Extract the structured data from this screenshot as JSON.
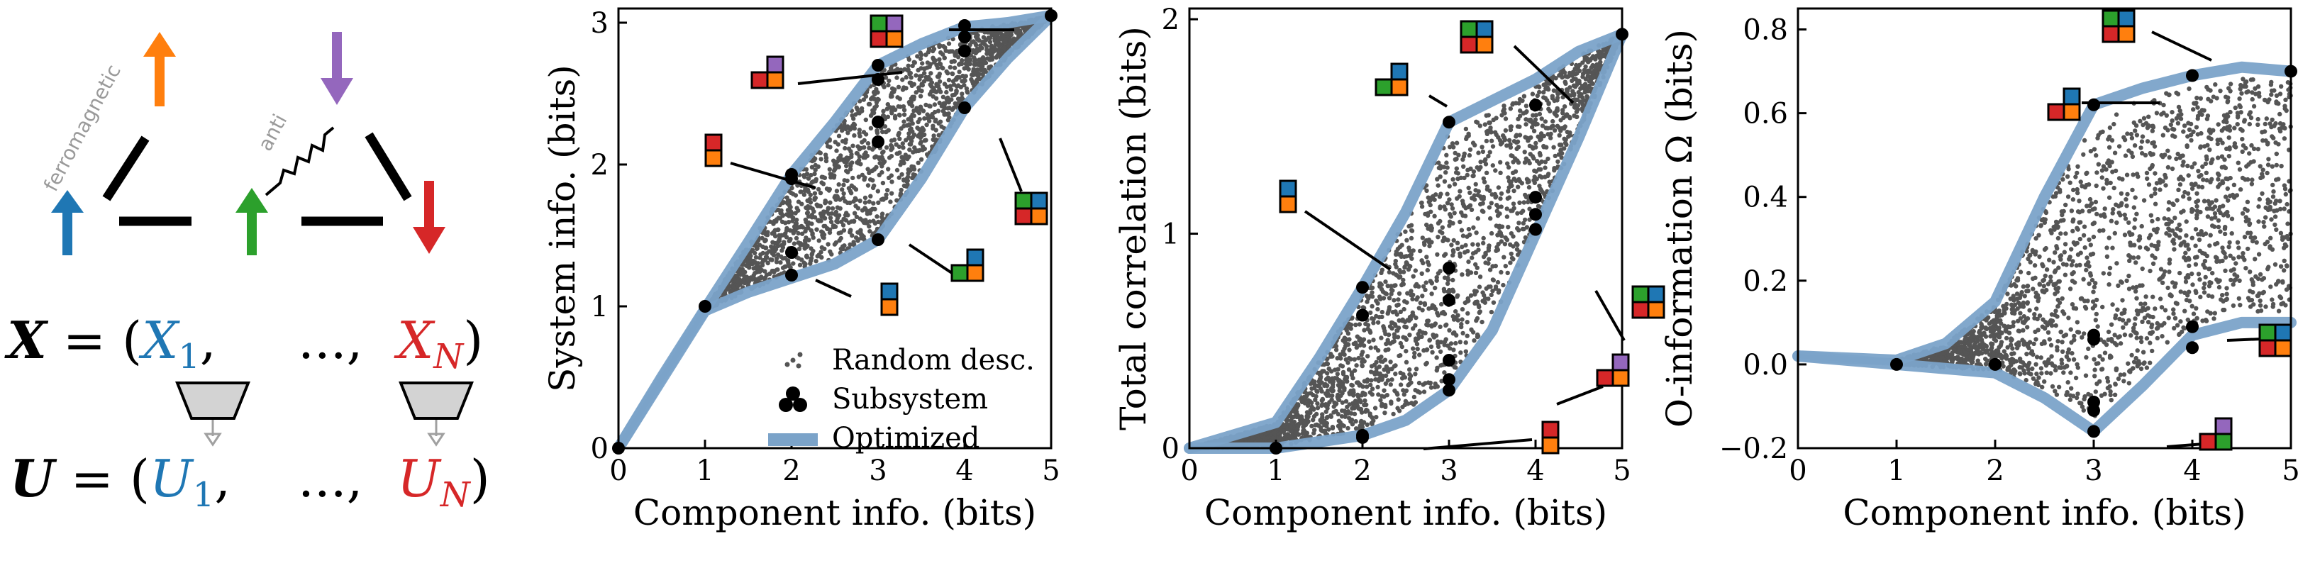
{
  "colors": {
    "blue": "#1f77b4",
    "orange": "#ff7f0e",
    "green": "#2ca02c",
    "red": "#d62728",
    "purple": "#9467bd",
    "random": "#555555",
    "optimized": "#7ba3c9",
    "optimized_dark": "#4a7bab"
  },
  "diagram": {
    "spin_labels": {
      "ferro": "ferromagnetic",
      "anti": "anti"
    },
    "eq_x": {
      "lhs": "X",
      "eq": " = (",
      "x1": "X",
      "x1_sub": "1",
      "comma": ",",
      "dots": "...,",
      "xn": "X",
      "xn_sub": "N",
      "close": ")"
    },
    "eq_u": {
      "lhs": "U",
      "eq": " = (",
      "u1": "U",
      "u1_sub": "1",
      "comma": ",",
      "dots": "...,",
      "un": "U",
      "un_sub": "N",
      "close": ")"
    }
  },
  "chart_data": [
    {
      "type": "scatter",
      "xlabel": "Component info. (bits)",
      "ylabel": "System info. (bits)",
      "xlim": [
        0,
        5
      ],
      "ylim": [
        0,
        3.1
      ],
      "xticks": [
        "0",
        "1",
        "2",
        "3",
        "4",
        "5"
      ],
      "yticks": [
        "0",
        "1",
        "2",
        "3"
      ],
      "legend": {
        "placement": "bottom-right",
        "entries": [
          "Random desc.",
          "Subsystem",
          "Optimized"
        ]
      },
      "optimized_upper": [
        [
          0,
          0
        ],
        [
          0.5,
          0.5
        ],
        [
          1,
          0.98
        ],
        [
          1.5,
          1.45
        ],
        [
          2,
          1.93
        ],
        [
          2.5,
          2.3
        ],
        [
          3,
          2.7
        ],
        [
          3.5,
          2.85
        ],
        [
          4,
          2.97
        ],
        [
          4.5,
          3.0
        ],
        [
          5,
          3.05
        ]
      ],
      "optimized_lower": [
        [
          0,
          0
        ],
        [
          1,
          0.97
        ],
        [
          1.5,
          1.1
        ],
        [
          2,
          1.2
        ],
        [
          2.5,
          1.3
        ],
        [
          3,
          1.47
        ],
        [
          3.5,
          1.9
        ],
        [
          4,
          2.4
        ],
        [
          4.5,
          2.75
        ],
        [
          5,
          3.05
        ]
      ],
      "subsystem_points": [
        [
          1,
          1
        ],
        [
          2,
          1.93
        ],
        [
          2,
          1.9
        ],
        [
          2,
          1.38
        ],
        [
          2,
          1.22
        ],
        [
          3,
          2.7
        ],
        [
          3,
          2.6
        ],
        [
          3,
          2.3
        ],
        [
          3,
          2.16
        ],
        [
          3,
          1.47
        ],
        [
          4,
          2.98
        ],
        [
          4,
          2.9
        ],
        [
          4,
          2.8
        ],
        [
          4,
          2.4
        ],
        [
          5,
          3.05
        ],
        [
          0,
          0
        ]
      ]
    },
    {
      "type": "scatter",
      "xlabel": "Component info. (bits)",
      "ylabel": "Total correlation (bits)",
      "xlim": [
        0,
        5
      ],
      "ylim": [
        0,
        2.05
      ],
      "xticks": [
        "0",
        "1",
        "2",
        "3",
        "4",
        "5"
      ],
      "yticks": [
        "0",
        "1",
        "2"
      ],
      "optimized_upper": [
        [
          0,
          0
        ],
        [
          1,
          0.12
        ],
        [
          1.5,
          0.42
        ],
        [
          2,
          0.75
        ],
        [
          2.5,
          1.1
        ],
        [
          3,
          1.52
        ],
        [
          3.5,
          1.62
        ],
        [
          4,
          1.72
        ],
        [
          4.5,
          1.85
        ],
        [
          5,
          1.93
        ]
      ],
      "optimized_lower": [
        [
          0,
          0
        ],
        [
          1,
          0
        ],
        [
          2,
          0.06
        ],
        [
          2.5,
          0.13
        ],
        [
          3,
          0.27
        ],
        [
          3.5,
          0.55
        ],
        [
          4,
          1.0
        ],
        [
          4.5,
          1.45
        ],
        [
          5,
          1.93
        ]
      ],
      "subsystem_points": [
        [
          1,
          0
        ],
        [
          2,
          0.75
        ],
        [
          2,
          0.62
        ],
        [
          2,
          0.06
        ],
        [
          2,
          0.05
        ],
        [
          3,
          1.52
        ],
        [
          3,
          0.84
        ],
        [
          3,
          0.69
        ],
        [
          3,
          0.41
        ],
        [
          3,
          0.32
        ],
        [
          3,
          0.27
        ],
        [
          4,
          1.6
        ],
        [
          4,
          1.17
        ],
        [
          4,
          1.09
        ],
        [
          4,
          1.02
        ],
        [
          5,
          1.93
        ]
      ]
    },
    {
      "type": "scatter",
      "xlabel": "Component info. (bits)",
      "ylabel": "O-information Ω (bits)",
      "xlim": [
        0,
        5
      ],
      "ylim": [
        -0.2,
        0.85
      ],
      "xticks": [
        "0",
        "1",
        "2",
        "3",
        "4",
        "5"
      ],
      "yticks": [
        "−0.2",
        "0.0",
        "0.2",
        "0.4",
        "0.6",
        "0.8"
      ],
      "optimized_upper": [
        [
          0,
          0.02
        ],
        [
          1,
          0.01
        ],
        [
          1.5,
          0.05
        ],
        [
          2,
          0.15
        ],
        [
          2.5,
          0.4
        ],
        [
          3,
          0.62
        ],
        [
          3.5,
          0.66
        ],
        [
          4,
          0.69
        ],
        [
          4.5,
          0.71
        ],
        [
          5,
          0.7
        ]
      ],
      "optimized_lower": [
        [
          0,
          0.02
        ],
        [
          1,
          0
        ],
        [
          2,
          -0.02
        ],
        [
          2.5,
          -0.08
        ],
        [
          3,
          -0.16
        ],
        [
          3.5,
          -0.05
        ],
        [
          4,
          0.07
        ],
        [
          4.5,
          0.1
        ],
        [
          5,
          0.1
        ]
      ],
      "subsystem_points": [
        [
          1,
          0
        ],
        [
          2,
          0
        ],
        [
          3,
          0.62
        ],
        [
          3,
          0.07
        ],
        [
          3,
          0.06
        ],
        [
          3,
          -0.09
        ],
        [
          3,
          -0.11
        ],
        [
          3,
          -0.16
        ],
        [
          4,
          0.69
        ],
        [
          4,
          0.09
        ],
        [
          4,
          0.04
        ],
        [
          5,
          0.7
        ]
      ]
    }
  ]
}
